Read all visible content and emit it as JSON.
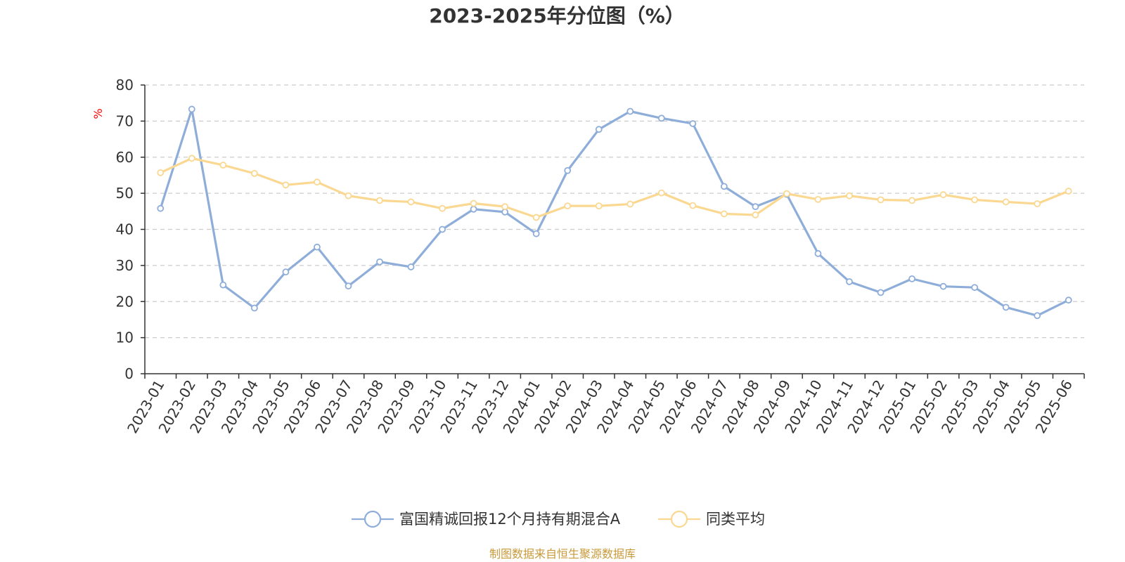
{
  "chart_data": {
    "type": "line",
    "title": "2023-2025年分位图（%）",
    "ylabel": "%",
    "xlabel": "",
    "ylim": [
      0,
      80
    ],
    "yticks": [
      0,
      10,
      20,
      30,
      40,
      50,
      60,
      70,
      80
    ],
    "grid": true,
    "legend_position": "bottom-center",
    "categories": [
      "2023-01",
      "2023-02",
      "2023-03",
      "2023-04",
      "2023-05",
      "2023-06",
      "2023-07",
      "2023-08",
      "2023-09",
      "2023-10",
      "2023-11",
      "2023-12",
      "2024-01",
      "2024-02",
      "2024-03",
      "2024-04",
      "2024-05",
      "2024-06",
      "2024-07",
      "2024-08",
      "2024-09",
      "2024-10",
      "2024-11",
      "2024-12",
      "2025-01",
      "2025-02",
      "2025-03",
      "2025-04",
      "2025-05",
      "2025-06"
    ],
    "series": [
      {
        "name": "富国精诚回报12个月持有期混合A",
        "color": "#8eaed9",
        "values": [
          45.8,
          73.3,
          24.6,
          18.2,
          28.2,
          35.1,
          24.3,
          31.0,
          29.6,
          40.0,
          45.6,
          44.8,
          38.8,
          56.3,
          67.7,
          72.7,
          70.8,
          69.3,
          51.9,
          46.3,
          49.7,
          33.3,
          25.5,
          22.5,
          26.3,
          24.2,
          23.9,
          18.4,
          16.1,
          20.4
        ]
      },
      {
        "name": "同类平均",
        "color": "#fad891",
        "values": [
          55.7,
          59.7,
          57.8,
          55.5,
          52.3,
          53.1,
          49.3,
          48.0,
          47.6,
          45.8,
          47.2,
          46.3,
          43.3,
          46.5,
          46.5,
          47.0,
          50.1,
          46.6,
          44.3,
          44.0,
          49.9,
          48.3,
          49.3,
          48.2,
          48.0,
          49.6,
          48.2,
          47.6,
          47.1,
          50.6
        ]
      }
    ]
  },
  "footer": {
    "source": "制图数据来自恒生聚源数据库"
  }
}
